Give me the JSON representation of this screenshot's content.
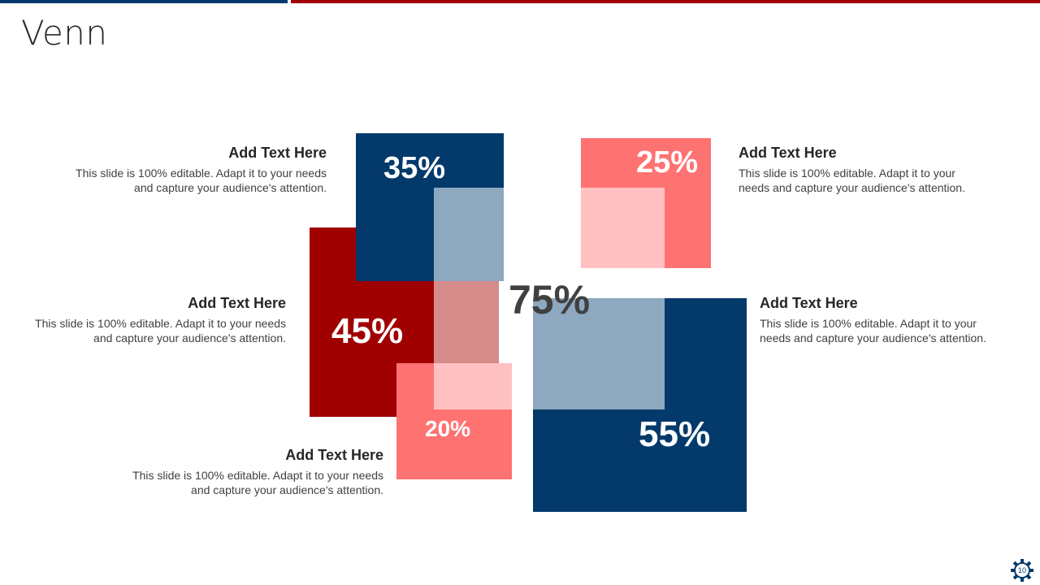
{
  "slide": {
    "title": "Venn",
    "page_number": "10"
  },
  "colors": {
    "navy": "#033a6b",
    "red": "#a00000",
    "salmon": "#ff7272",
    "light_pink": "#ffc0c2",
    "steel_blue": "#8da8bf",
    "dusty_rose": "#d68b8b"
  },
  "shapes": {
    "blue_top": {
      "label": "35%"
    },
    "red_left": {
      "label": "45%"
    },
    "salmon_bottom": {
      "label": "20%"
    },
    "salmon_top": {
      "label": "25%"
    },
    "blue_bottom": {
      "label": "55%"
    },
    "center": {
      "label": "75%"
    }
  },
  "text_blocks": [
    {
      "heading": "Add Text Here",
      "body": "This slide is 100% editable. Adapt it to your needs and capture your audience's attention."
    },
    {
      "heading": "Add Text Here",
      "body": "This slide is 100% editable. Adapt it to your needs and capture your audience's attention."
    },
    {
      "heading": "Add Text Here",
      "body": "This slide is 100% editable. Adapt it to your needs and capture your audience's attention."
    },
    {
      "heading": "Add Text Here",
      "body": "This slide is 100% editable. Adapt it to your needs and capture your audience's attention."
    },
    {
      "heading": "Add Text Here",
      "body": "This slide is 100% editable. Adapt it to your needs and capture your audience's attention."
    }
  ],
  "icons": {
    "settings": "gear-icon"
  }
}
